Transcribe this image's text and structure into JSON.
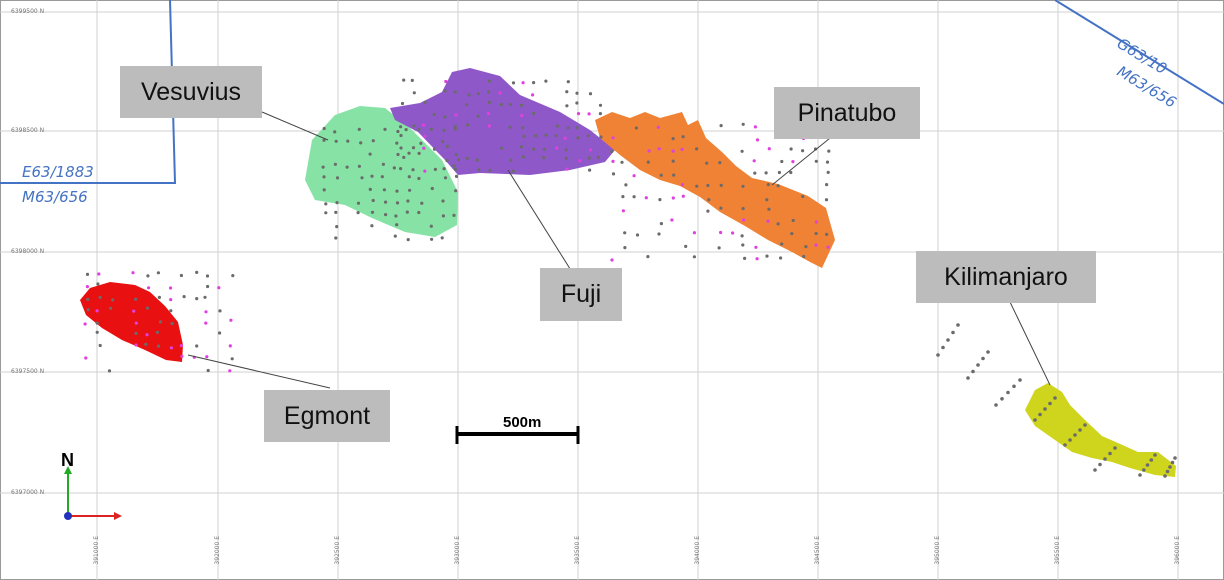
{
  "map": {
    "grid_y_labels": [
      "6399500 N",
      "6398500 N",
      "6398000 N",
      "6397500 N",
      "6397000 N"
    ],
    "grid_x_labels": [
      "391000 E",
      "392000 E",
      "392500 E",
      "393000 E",
      "393500 E",
      "394000 E",
      "394500 E",
      "395000 E",
      "395500 E",
      "396000 E"
    ],
    "tenements": [
      "E63/1883",
      "M63/656",
      "G63/10",
      "M63/656"
    ],
    "deposits": [
      {
        "name": "Vesuvius",
        "color": "#86e3a5"
      },
      {
        "name": "Fuji",
        "color": "#8f58c8"
      },
      {
        "name": "Pinatubo",
        "color": "#f08236"
      },
      {
        "name": "Egmont",
        "color": "#e81010"
      },
      {
        "name": "Kilimanjaro",
        "color": "#cfd41c"
      }
    ],
    "scale_bar": "500m",
    "north_arrow": "N",
    "colors": {
      "grid": "#d0d0d0",
      "boundary": "#4472c4",
      "label_bg": "#bcbcbc",
      "drill_hole": "#6b6b6b",
      "drill_hole_magenta": "#e040e0"
    }
  }
}
